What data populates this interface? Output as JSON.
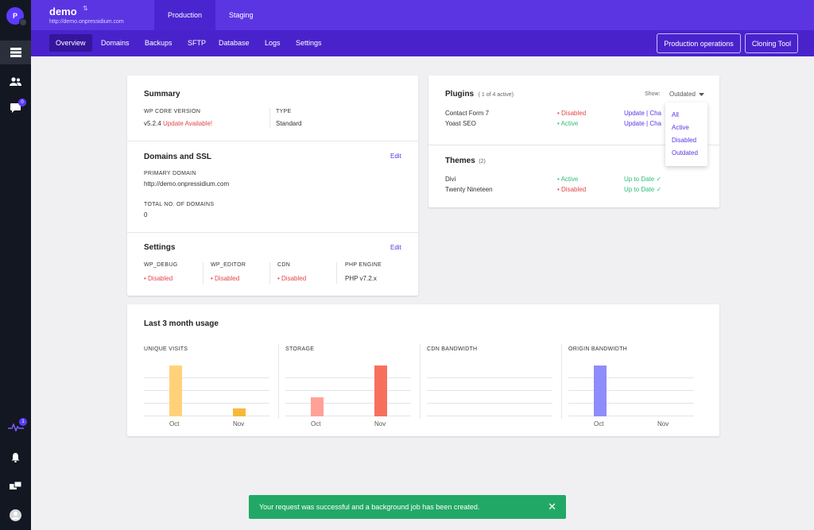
{
  "rail": {
    "avatar_initial": "P",
    "badge_messages": "0",
    "badge_activity": "1"
  },
  "site": {
    "name": "demo",
    "url": "http://demo.onpressidium.com",
    "sort_glyph": "⇅"
  },
  "env_tabs": [
    "Production",
    "Staging"
  ],
  "subnav": {
    "tabs": [
      "Overview",
      "Domains",
      "Backups",
      "SFTP",
      "Database",
      "Logs",
      "Settings"
    ],
    "production_ops": "Production operations",
    "cloning_tool": "Cloning Tool"
  },
  "summary": {
    "title": "Summary",
    "wp_core_label": "WP CORE VERSION",
    "wp_core_version": "v5.2.4",
    "update_available": "Update Available!",
    "type_label": "TYPE",
    "type_value": "Standard"
  },
  "domains": {
    "title": "Domains and SSL",
    "edit": "Edit",
    "primary_label": "PRIMARY DOMAIN",
    "primary_value": "http://demo.onpressidium.com",
    "total_label": "TOTAL NO. OF DOMAINS",
    "total_value": "0"
  },
  "settings": {
    "title": "Settings",
    "edit": "Edit",
    "items": [
      {
        "label": "WP_DEBUG",
        "value": "• Disabled"
      },
      {
        "label": "WP_EDITOR",
        "value": "• Disabled"
      },
      {
        "label": "CDN",
        "value": "• Disabled"
      },
      {
        "label": "PHP ENGINE",
        "value": "PHP v7.2.x"
      }
    ]
  },
  "plugins": {
    "title": "Plugins",
    "count": "( 1 of 4 active)",
    "show_label": "Show:",
    "show_value": "Outdated",
    "rows": [
      {
        "name": "Contact Form 7",
        "status": "• Disabled",
        "action": "Update | Cha"
      },
      {
        "name": "Yoast SEO",
        "status": "• Active",
        "action": "Update | Cha"
      }
    ],
    "dropdown_options": [
      "All",
      "Active",
      "Disabled",
      "Outdated"
    ]
  },
  "themes": {
    "title": "Themes",
    "count": "(2)",
    "rows": [
      {
        "name": "Divi",
        "status": "• Active",
        "state": "Up to Date ✓"
      },
      {
        "name": "Twenty Nineteen",
        "status": "• Disabled",
        "state": "Up to Date ✓"
      }
    ]
  },
  "usage": {
    "title": "Last 3 month usage",
    "panels": [
      "UNIQUE VISITS",
      "STORAGE",
      "CDN BANDWIDTH",
      "ORIGIN BANDWIDTH"
    ]
  },
  "chart_data": [
    {
      "type": "bar",
      "title": "UNIQUE VISITS",
      "categories": [
        "Oct",
        "Nov"
      ],
      "values": [
        100,
        16
      ],
      "ylim": [
        0,
        100
      ],
      "colors": [
        "#ffd27a",
        "#f7b83a"
      ],
      "grid": true
    },
    {
      "type": "bar",
      "title": "STORAGE",
      "categories": [
        "Oct",
        "Nov"
      ],
      "values": [
        38,
        100
      ],
      "ylim": [
        0,
        100
      ],
      "colors": [
        "#ffa196",
        "#f7705e"
      ],
      "grid": true
    },
    {
      "type": "bar",
      "title": "CDN BANDWIDTH",
      "categories": [],
      "values": [],
      "ylim": [
        0,
        100
      ],
      "colors": [],
      "grid": true
    },
    {
      "type": "bar",
      "title": "ORIGIN BANDWIDTH",
      "categories": [
        "Oct",
        "Nov"
      ],
      "values": [
        100,
        0
      ],
      "ylim": [
        0,
        100
      ],
      "colors": [
        "#8f8cfb",
        "#8f8cfb"
      ],
      "grid": true
    }
  ],
  "toast": {
    "message": "Your request was successful and a background job has been created.",
    "close": "✕"
  },
  "colors": {
    "brand": "#5b35e2",
    "nav_dark": "#4a22cc",
    "rail": "#131722",
    "success": "#22a866",
    "danger": "#e0474c",
    "ok": "#2fbf7a"
  }
}
